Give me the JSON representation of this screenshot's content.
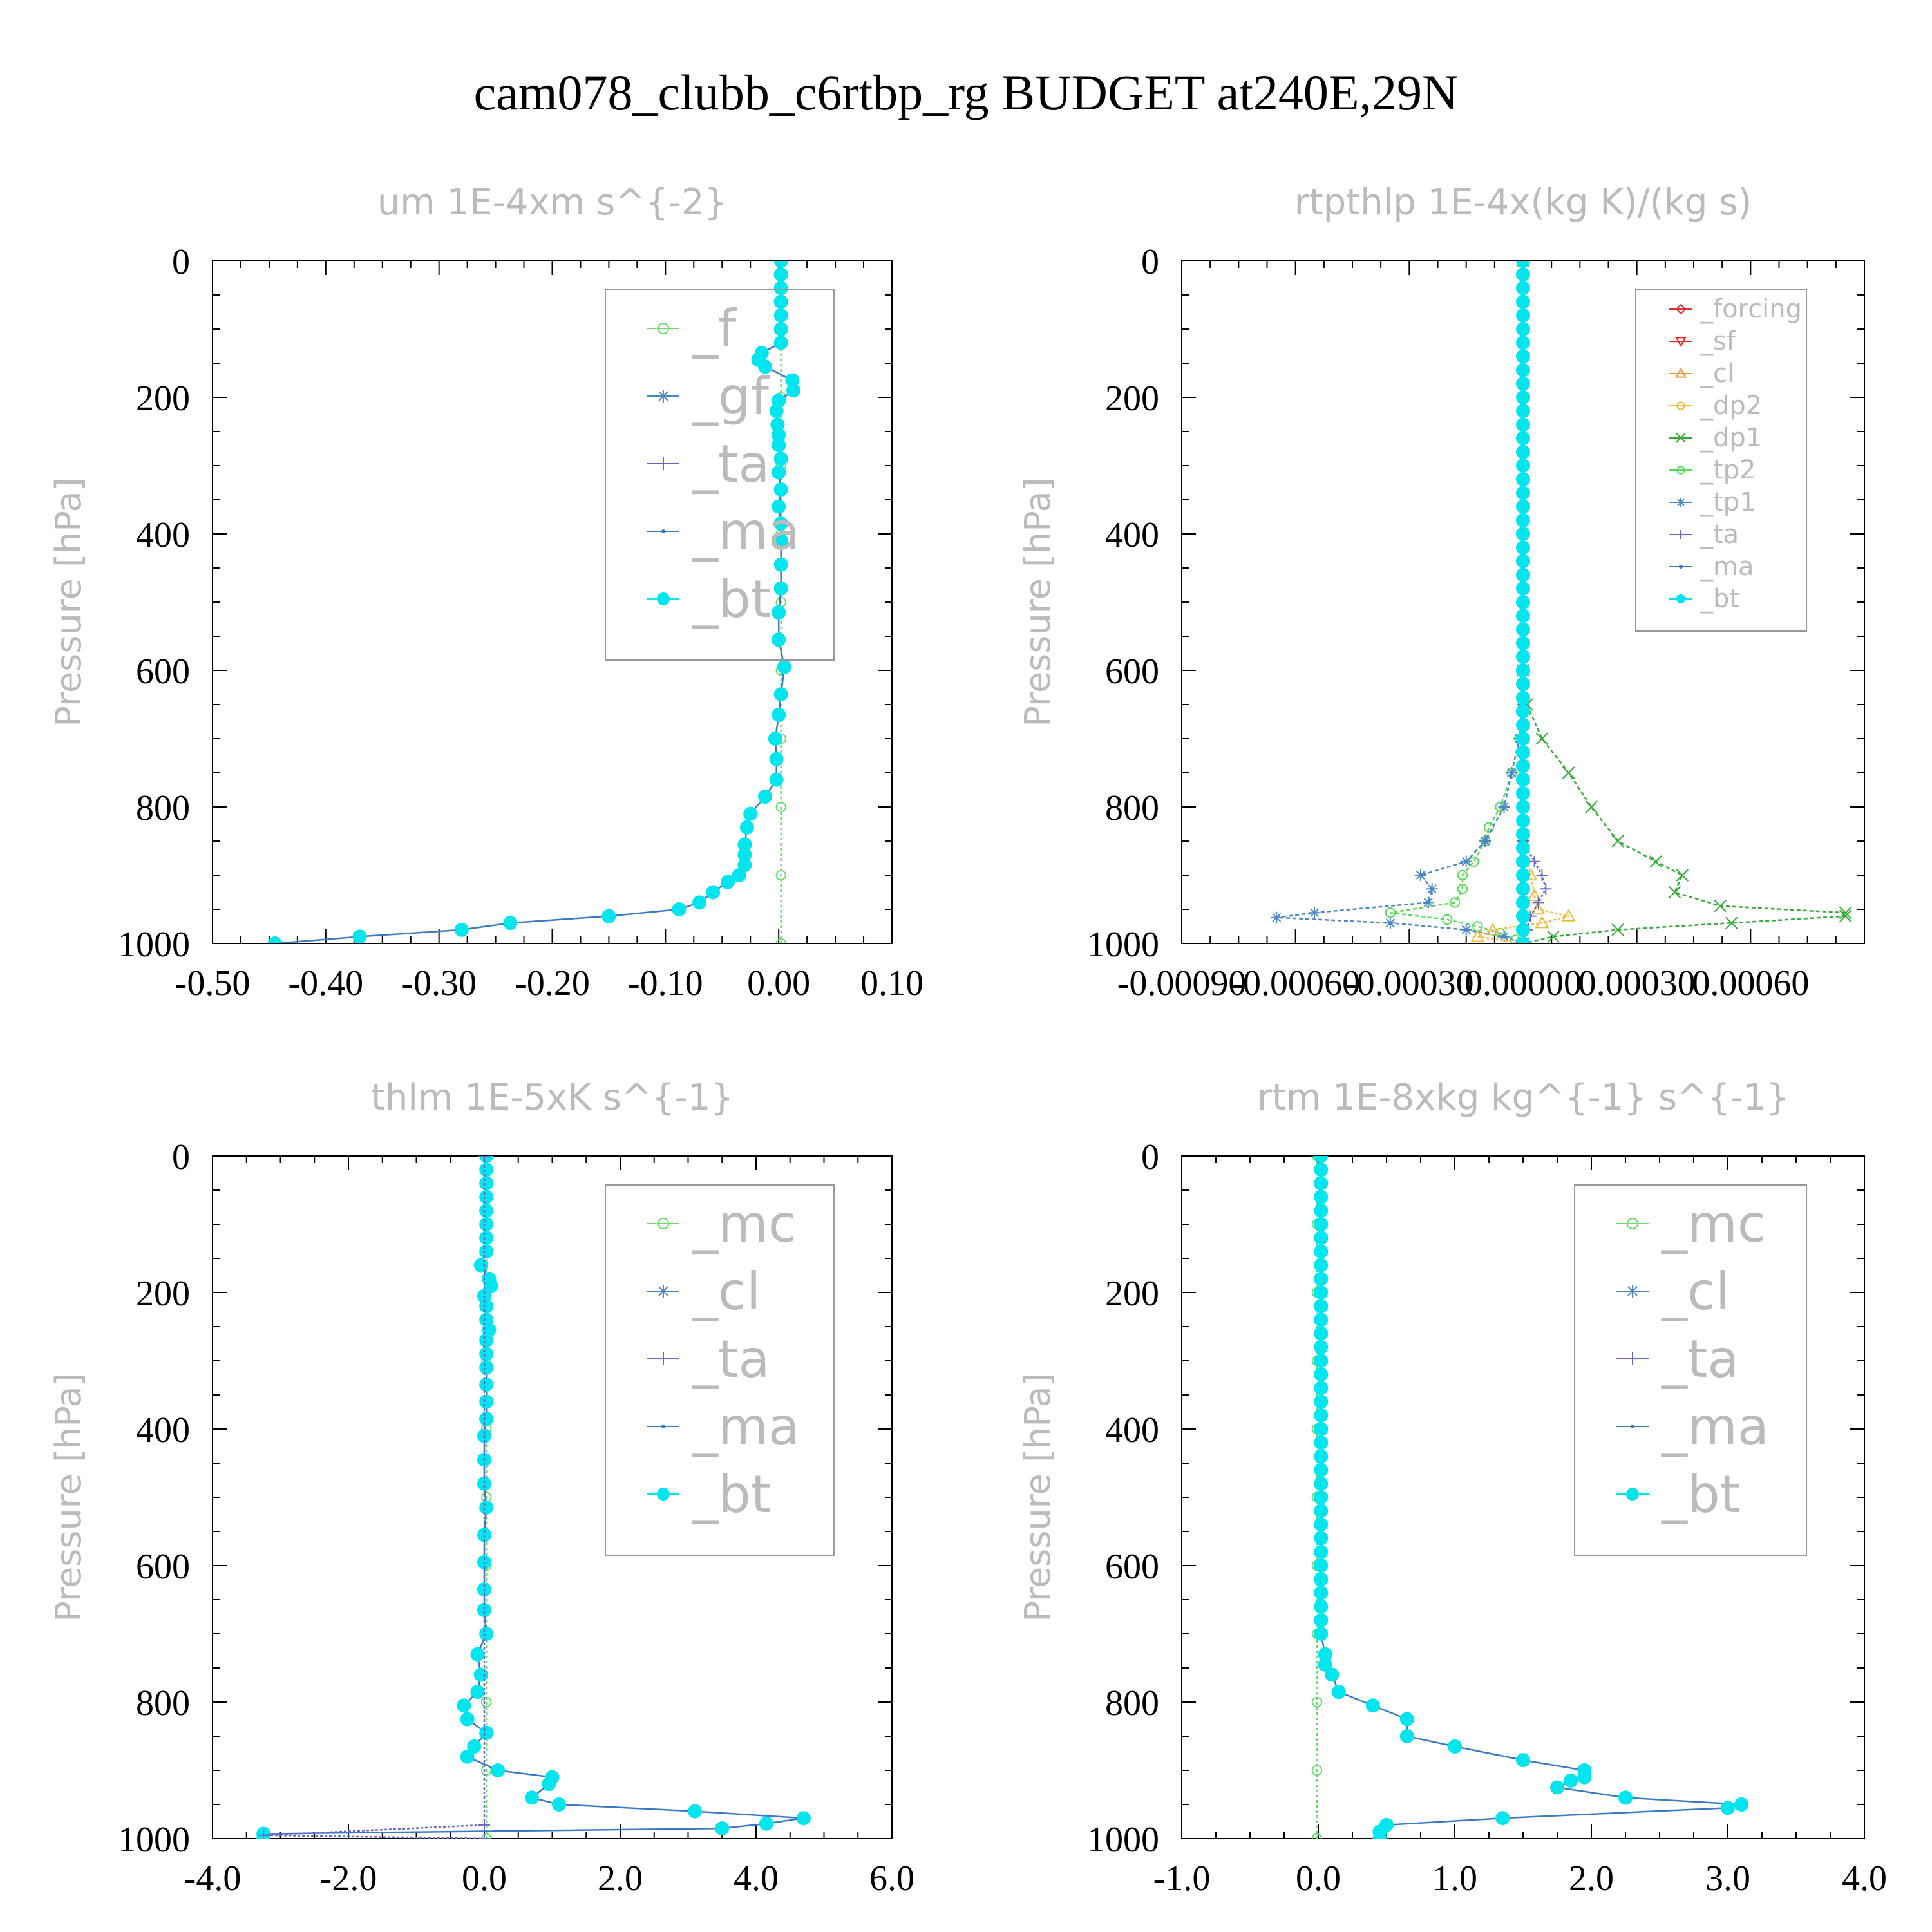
{
  "title": "cam078_clubb_c6rtbp_rg  BUDGET at240E,29N",
  "chart_data": [
    {
      "type": "line",
      "title": "um  1E-4xm s^{-2}",
      "ylabel": "Pressure [hPa]",
      "xlim": [
        -0.5,
        0.1
      ],
      "ylim": [
        0,
        1000
      ],
      "y_inverted": false,
      "xticks": [
        "-0.50",
        "-0.40",
        "-0.30",
        "-0.20",
        "-0.10",
        "0.00",
        "0.10"
      ],
      "xtick_values": [
        -0.5,
        -0.4,
        -0.3,
        -0.2,
        -0.1,
        0.0,
        0.1
      ],
      "yticks": [
        "0",
        "200",
        "400",
        "600",
        "800",
        "1000"
      ],
      "legend_position": "top-right",
      "legend_font_scale": 1.0,
      "legend": [
        {
          "label": "_f",
          "color": "#66dd66",
          "marker": "circle-open"
        },
        {
          "label": "_gf",
          "color": "#4a86c8",
          "marker": "asterisk"
        },
        {
          "label": "_ta",
          "color": "#6666cc",
          "marker": "plus"
        },
        {
          "label": "_ma",
          "color": "#3a78c8",
          "marker": "dot"
        },
        {
          "label": "_bt",
          "color": "#00e5ee",
          "marker": "circle-filled"
        }
      ],
      "series": [
        {
          "name": "_f",
          "color": "#66dd66",
          "dash": "4,4",
          "marker": "circle-open",
          "y": [
            0,
            100,
            200,
            300,
            400,
            500,
            600,
            700,
            800,
            900,
            1000
          ],
          "x": [
            0.002,
            0.002,
            0.002,
            0.002,
            0.002,
            0.002,
            0.002,
            0.002,
            0.002,
            0.002,
            0.002
          ]
        },
        {
          "name": "_bt",
          "color": "#00e5ee",
          "dash": "",
          "line_color": "#3a78c8",
          "marker": "circle-filled",
          "y": [
            0,
            20,
            40,
            60,
            80,
            100,
            120,
            135,
            145,
            155,
            175,
            190,
            205,
            220,
            240,
            255,
            270,
            290,
            310,
            335,
            360,
            385,
            410,
            445,
            480,
            515,
            555,
            595,
            635,
            665,
            700,
            730,
            760,
            785,
            810,
            830,
            855,
            870,
            885,
            900,
            910,
            925,
            940,
            950,
            960,
            970,
            980,
            990,
            1000
          ],
          "x": [
            0.002,
            0.002,
            0.002,
            0.002,
            0.002,
            0.002,
            0.002,
            -0.015,
            -0.018,
            -0.012,
            0.012,
            0.013,
            0.0,
            -0.002,
            -0.001,
            0.0,
            0.0,
            0.002,
            0.0,
            0.002,
            0.0,
            0.002,
            0.002,
            0.002,
            0.002,
            0.0,
            0.0,
            0.005,
            0.002,
            0.0,
            -0.003,
            -0.002,
            -0.002,
            -0.012,
            -0.025,
            -0.028,
            -0.03,
            -0.03,
            -0.03,
            -0.035,
            -0.045,
            -0.058,
            -0.07,
            -0.088,
            -0.15,
            -0.237,
            -0.28,
            -0.37,
            -0.445
          ]
        }
      ]
    },
    {
      "type": "line",
      "title": "rtpthlp  1E-4x(kg K)/(kg s)",
      "ylabel": "Pressure [hPa]",
      "xlim": [
        -0.0009,
        0.0009
      ],
      "ylim": [
        0,
        1000
      ],
      "xticks": [
        "-0.00090",
        "-0.00060",
        "-0.00030",
        "0.00000",
        "0.00030",
        "0.00060"
      ],
      "xtick_values": [
        -0.0009,
        -0.0006,
        -0.0003,
        0.0,
        0.0003,
        0.0006
      ],
      "yticks": [
        "0",
        "200",
        "400",
        "600",
        "800",
        "1000"
      ],
      "legend_position": "top-right",
      "legend_font_scale": 0.55,
      "legend": [
        {
          "label": "_forcing",
          "color": "#dd3333",
          "marker": "diamond"
        },
        {
          "label": "_sf",
          "color": "#ee2222",
          "marker": "triangle-down"
        },
        {
          "label": "_cl",
          "color": "#ee9933",
          "marker": "triangle-up"
        },
        {
          "label": "_dp2",
          "color": "#eebb33",
          "marker": "circle-open"
        },
        {
          "label": "_dp1",
          "color": "#33aa33",
          "marker": "cross"
        },
        {
          "label": "_tp2",
          "color": "#55dd55",
          "marker": "circle-open"
        },
        {
          "label": "_tp1",
          "color": "#4a86c8",
          "marker": "asterisk"
        },
        {
          "label": "_ta",
          "color": "#6666cc",
          "marker": "plus"
        },
        {
          "label": "_ma",
          "color": "#3a78c8",
          "marker": "dot"
        },
        {
          "label": "_bt",
          "color": "#00e5ee",
          "marker": "circle-filled"
        }
      ],
      "series": [
        {
          "name": "_forcing",
          "color": "#dd3333",
          "dash": "",
          "marker": "none",
          "y": [
            0,
            1000
          ],
          "x": [
            0.0,
            0.0
          ]
        },
        {
          "name": "_dp1",
          "color": "#33aa33",
          "dash": "6,4",
          "marker": "cross",
          "y": [
            0,
            600,
            650,
            700,
            750,
            800,
            850,
            880,
            900,
            925,
            945,
            955,
            960,
            970,
            980,
            990,
            1000
          ],
          "x": [
            0.0,
            0.0,
            1e-05,
            5e-05,
            0.00012,
            0.00018,
            0.00025,
            0.00035,
            0.00042,
            0.0004,
            0.00052,
            0.00085,
            0.00085,
            0.00055,
            0.00025,
            8e-05,
            0.0
          ]
        },
        {
          "name": "_tp2",
          "color": "#55dd55",
          "dash": "6,4",
          "marker": "circle-open",
          "y": [
            0,
            650,
            700,
            750,
            800,
            830,
            850,
            880,
            900,
            920,
            940,
            955,
            965,
            975,
            985,
            995,
            1000
          ],
          "x": [
            0.0,
            0.0,
            -1e-05,
            -3e-05,
            -6e-05,
            -9e-05,
            -0.0001,
            -0.00013,
            -0.00016,
            -0.00016,
            -0.00018,
            -0.00035,
            -0.0002,
            -0.00012,
            -6e-05,
            -2e-05,
            0.0
          ]
        },
        {
          "name": "_tp1",
          "color": "#4a86c8",
          "dash": "6,4",
          "marker": "asterisk",
          "y": [
            0,
            650,
            700,
            750,
            800,
            850,
            880,
            900,
            920,
            940,
            955,
            962,
            970,
            980,
            990,
            1000
          ],
          "x": [
            0.0,
            0.0,
            -1e-05,
            -3e-05,
            -5e-05,
            -0.0001,
            -0.00015,
            -0.00027,
            -0.00024,
            -0.00025,
            -0.00055,
            -0.00065,
            -0.00035,
            -0.00015,
            -5e-05,
            0.0
          ]
        },
        {
          "name": "_cl",
          "color": "#eebb33",
          "dash": "4,3",
          "marker": "triangle-up",
          "y": [
            0,
            850,
            900,
            930,
            950,
            960,
            970,
            980,
            990,
            1000
          ],
          "x": [
            0.0,
            0.0,
            2e-05,
            3e-05,
            4e-05,
            0.00012,
            5e-05,
            -8e-05,
            -0.00012,
            0.0
          ]
        },
        {
          "name": "_ta",
          "color": "#6666cc",
          "dash": "4,3",
          "marker": "plus",
          "y": [
            0,
            850,
            880,
            900,
            920,
            940,
            960,
            980,
            1000
          ],
          "x": [
            0.0,
            0.0,
            3e-05,
            5e-05,
            6e-05,
            4e-05,
            2e-05,
            1e-05,
            0.0
          ]
        },
        {
          "name": "_bt",
          "color": "#00e5ee",
          "dash": "",
          "line_color": "#3a78c8",
          "marker": "circle-filled",
          "y": [
            0,
            20,
            40,
            60,
            80,
            100,
            120,
            140,
            160,
            180,
            200,
            220,
            240,
            260,
            280,
            300,
            320,
            340,
            360,
            380,
            400,
            420,
            440,
            460,
            480,
            500,
            520,
            540,
            560,
            580,
            600,
            620,
            640,
            660,
            680,
            700,
            720,
            740,
            760,
            780,
            800,
            820,
            840,
            860,
            880,
            900,
            920,
            940,
            960,
            980,
            1000
          ],
          "x": [
            0,
            0,
            0,
            0,
            0,
            0,
            0,
            0,
            0,
            0,
            0,
            0,
            0,
            0,
            0,
            0,
            0,
            0,
            0,
            0,
            0,
            0,
            0,
            0,
            0,
            0,
            0,
            0,
            0,
            0,
            0,
            0,
            0,
            0,
            0,
            0,
            0,
            0,
            0,
            0,
            0,
            0,
            0,
            0,
            0,
            0,
            0,
            0,
            0,
            0,
            0
          ]
        }
      ]
    },
    {
      "type": "line",
      "title": "thlm  1E-5xK s^{-1}",
      "ylabel": "Pressure [hPa]",
      "xlim": [
        -4.0,
        6.0
      ],
      "ylim": [
        0,
        1000
      ],
      "xticks": [
        "-4.0",
        "-2.0",
        "0.0",
        "2.0",
        "4.0",
        "6.0"
      ],
      "xtick_values": [
        -4,
        -2,
        0,
        2,
        4,
        6
      ],
      "yticks": [
        "0",
        "200",
        "400",
        "600",
        "800",
        "1000"
      ],
      "legend_position": "top-right",
      "legend_font_scale": 1.0,
      "legend": [
        {
          "label": "_mc",
          "color": "#66dd66",
          "marker": "circle-open"
        },
        {
          "label": "_cl",
          "color": "#4a86c8",
          "marker": "asterisk"
        },
        {
          "label": "_ta",
          "color": "#6666cc",
          "marker": "plus"
        },
        {
          "label": "_ma",
          "color": "#3a78c8",
          "marker": "dot"
        },
        {
          "label": "_bt",
          "color": "#00e5ee",
          "marker": "circle-filled"
        }
      ],
      "series": [
        {
          "name": "_mc",
          "color": "#66dd66",
          "dash": "4,4",
          "marker": "circle-open",
          "y": [
            0,
            100,
            200,
            300,
            400,
            500,
            600,
            700,
            800,
            900,
            1000
          ],
          "x": [
            0.03,
            0.03,
            0.03,
            0.03,
            0.03,
            0.03,
            0.03,
            0.03,
            0.03,
            0.03,
            0.03
          ]
        },
        {
          "name": "_bt",
          "color": "#00e5ee",
          "dash": "",
          "line_color": "#3a78c8",
          "marker": "circle-filled",
          "y": [
            0,
            20,
            40,
            60,
            80,
            100,
            120,
            140,
            160,
            180,
            190,
            205,
            220,
            240,
            255,
            270,
            290,
            310,
            335,
            360,
            385,
            410,
            445,
            480,
            515,
            555,
            595,
            635,
            665,
            700,
            730,
            760,
            785,
            805,
            825,
            845,
            865,
            880,
            900,
            910,
            920,
            940,
            950,
            960,
            970,
            978,
            985,
            993,
            1000
          ],
          "x": [
            0.03,
            0.03,
            0.03,
            0.03,
            0.03,
            0.03,
            0.03,
            0.03,
            -0.05,
            0.07,
            0.1,
            0.0,
            0.03,
            0.03,
            0.07,
            0.03,
            0.03,
            0.03,
            0.03,
            0.03,
            0.03,
            0.0,
            0.0,
            0.0,
            0.03,
            0.0,
            0.0,
            0.0,
            0.0,
            0.03,
            -0.1,
            -0.05,
            -0.1,
            -0.3,
            -0.25,
            0.03,
            -0.15,
            -0.25,
            0.2,
            1.0,
            0.95,
            0.7,
            1.1,
            3.1,
            4.7,
            4.15,
            3.5,
            -3.25,
            -3.25
          ]
        },
        {
          "name": "_ta",
          "color": "#6666cc",
          "dash": "4,3",
          "marker": "plus",
          "y": [
            0,
            980,
            995,
            1000
          ],
          "x": [
            0.0,
            0.0,
            -3.25,
            0.0
          ]
        }
      ]
    },
    {
      "type": "line",
      "title": "rtm  1E-8xkg kg^{-1} s^{-1}",
      "ylabel": "Pressure [hPa]",
      "xlim": [
        -1.0,
        4.0
      ],
      "ylim": [
        0,
        1000
      ],
      "xticks": [
        "-1.0",
        "0.0",
        "1.0",
        "2.0",
        "3.0",
        "4.0"
      ],
      "xtick_values": [
        -1,
        0,
        1,
        2,
        3,
        4
      ],
      "yticks": [
        "0",
        "200",
        "400",
        "600",
        "800",
        "1000"
      ],
      "legend_position": "top-right",
      "legend_font_scale": 1.0,
      "legend": [
        {
          "label": "_mc",
          "color": "#66dd66",
          "marker": "circle-open"
        },
        {
          "label": "_cl",
          "color": "#4a86c8",
          "marker": "asterisk"
        },
        {
          "label": "_ta",
          "color": "#6666cc",
          "marker": "plus"
        },
        {
          "label": "_ma",
          "color": "#3a78c8",
          "marker": "dot"
        },
        {
          "label": "_bt",
          "color": "#00e5ee",
          "marker": "circle-filled"
        }
      ],
      "series": [
        {
          "name": "_mc",
          "color": "#66dd66",
          "dash": "4,4",
          "marker": "circle-open",
          "y": [
            0,
            100,
            200,
            300,
            400,
            500,
            600,
            700,
            800,
            900,
            1000
          ],
          "x": [
            -0.01,
            -0.01,
            -0.01,
            -0.01,
            -0.01,
            -0.01,
            -0.01,
            -0.01,
            -0.01,
            -0.01,
            -0.01
          ]
        },
        {
          "name": "_bt",
          "color": "#00e5ee",
          "dash": "",
          "line_color": "#3a78c8",
          "marker": "circle-filled",
          "y": [
            0,
            20,
            40,
            60,
            80,
            100,
            120,
            140,
            160,
            180,
            200,
            220,
            240,
            260,
            280,
            300,
            320,
            340,
            360,
            380,
            400,
            420,
            440,
            460,
            480,
            500,
            520,
            540,
            560,
            580,
            600,
            620,
            640,
            660,
            680,
            700,
            730,
            745,
            760,
            785,
            805,
            825,
            850,
            865,
            885,
            900,
            910,
            915,
            925,
            940,
            950,
            955,
            970,
            980,
            990,
            1000
          ],
          "x": [
            0.02,
            0.02,
            0.02,
            0.02,
            0.02,
            0.02,
            0.02,
            0.02,
            0.02,
            0.02,
            0.02,
            0.02,
            0.02,
            0.02,
            0.02,
            0.02,
            0.02,
            0.02,
            0.02,
            0.02,
            0.02,
            0.02,
            0.02,
            0.02,
            0.02,
            0.02,
            0.02,
            0.02,
            0.02,
            0.02,
            0.02,
            0.02,
            0.02,
            0.02,
            0.02,
            0.02,
            0.05,
            0.05,
            0.1,
            0.15,
            0.4,
            0.65,
            0.65,
            1.0,
            1.5,
            1.95,
            1.95,
            1.85,
            1.75,
            2.25,
            3.1,
            3.0,
            1.35,
            0.5,
            0.45,
            0.45
          ]
        }
      ]
    }
  ]
}
